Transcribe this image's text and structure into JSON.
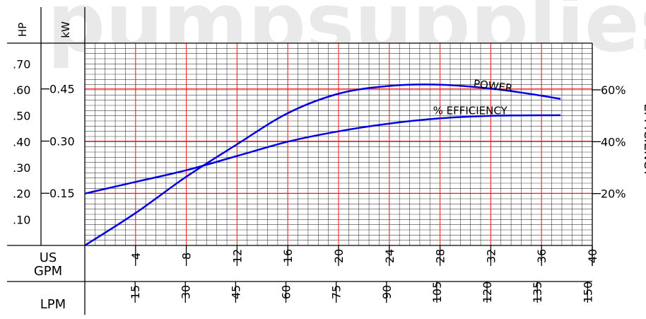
{
  "chart_data": {
    "type": "line",
    "left_axis_labels": {
      "hp": "HP",
      "kw": "kW"
    },
    "hp_ticks": [
      ".10",
      ".20",
      ".30",
      ".40",
      ".50",
      ".60",
      ".70"
    ],
    "kw_ticks": [
      "0.15",
      "0.30",
      "0.45"
    ],
    "efficiency_axis": {
      "label": "EFFICIENCY",
      "ticks": [
        "20%",
        "40%",
        "60%"
      ]
    },
    "x_axis_usgpm": {
      "label_line1": "US",
      "label_line2": "GPM",
      "ticks": [
        "4",
        "8",
        "12",
        "16",
        "20",
        "24",
        "28",
        "32",
        "36",
        "40"
      ],
      "range": [
        0,
        40
      ]
    },
    "x_axis_lpm": {
      "label": "LPM",
      "ticks": [
        "15",
        "30",
        "45",
        "60",
        "75",
        "90",
        "105",
        "120",
        "135",
        "150"
      ]
    },
    "hp_range": [
      0,
      0.78
    ],
    "efficiency_range": [
      0,
      78
    ],
    "series": [
      {
        "name": "POWER",
        "axis": "hp",
        "x": [
          0,
          4,
          8,
          12,
          16,
          20,
          24,
          28,
          32,
          35,
          37.5
        ],
        "y": [
          0,
          0.125,
          0.265,
          0.39,
          0.51,
          0.585,
          0.615,
          0.62,
          0.605,
          0.585,
          0.565
        ]
      },
      {
        "name": "% EFFICIENCY",
        "axis": "efficiency",
        "x": [
          0,
          4,
          8,
          12,
          16,
          20,
          24,
          28,
          32,
          37.5
        ],
        "y": [
          20,
          24.5,
          29,
          34.5,
          40,
          44,
          47,
          49,
          50,
          50.2
        ]
      }
    ],
    "grid": true,
    "watermark": "pumpsupplies",
    "colors": {
      "curve": "#0000e0",
      "major_grid": "#ff2020",
      "minor_grid": "#000000"
    }
  }
}
